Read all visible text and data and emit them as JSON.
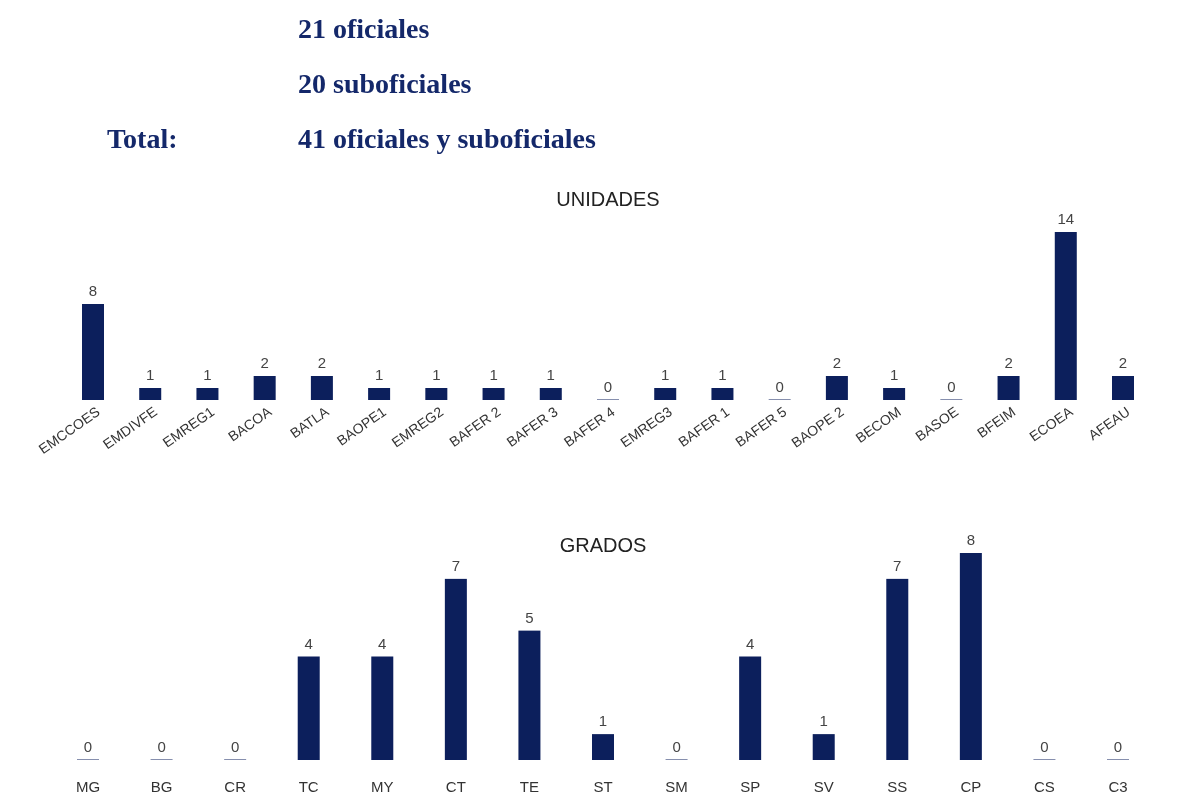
{
  "chart_data": [
    {
      "type": "other",
      "annotations": [
        "21 oficiales",
        "20 suboficiales",
        "Total:",
        "41 oficiales y suboficiales"
      ]
    },
    {
      "type": "bar",
      "title": "UNIDADES",
      "categories": [
        "EMCCOES",
        "EMDIVFE",
        "EMREG1",
        "BACOA",
        "BATLA",
        "BAOPE1",
        "EMREG2",
        "BAFER 2",
        "BAFER 3",
        "BAFER 4",
        "EMREG3",
        "BAFER 1",
        "BAFER 5",
        "BAOPE 2",
        "BECOM",
        "BASOE",
        "BFEIM",
        "ECOEA",
        "AFEAU"
      ],
      "values": [
        8,
        1,
        1,
        2,
        2,
        1,
        1,
        1,
        1,
        0,
        1,
        1,
        0,
        2,
        1,
        0,
        2,
        14,
        2
      ],
      "color": "#0c1f5c",
      "data_labels": true
    },
    {
      "type": "bar",
      "title": "GRADOS",
      "categories": [
        "MG",
        "BG",
        "CR",
        "TC",
        "MY",
        "CT",
        "TE",
        "ST",
        "SM",
        "SP",
        "SV",
        "SS",
        "CP",
        "CS",
        "C3"
      ],
      "values": [
        0,
        0,
        0,
        4,
        4,
        7,
        5,
        1,
        0,
        4,
        1,
        7,
        8,
        0,
        0
      ],
      "color": "#0c1f5c",
      "data_labels": true
    }
  ]
}
